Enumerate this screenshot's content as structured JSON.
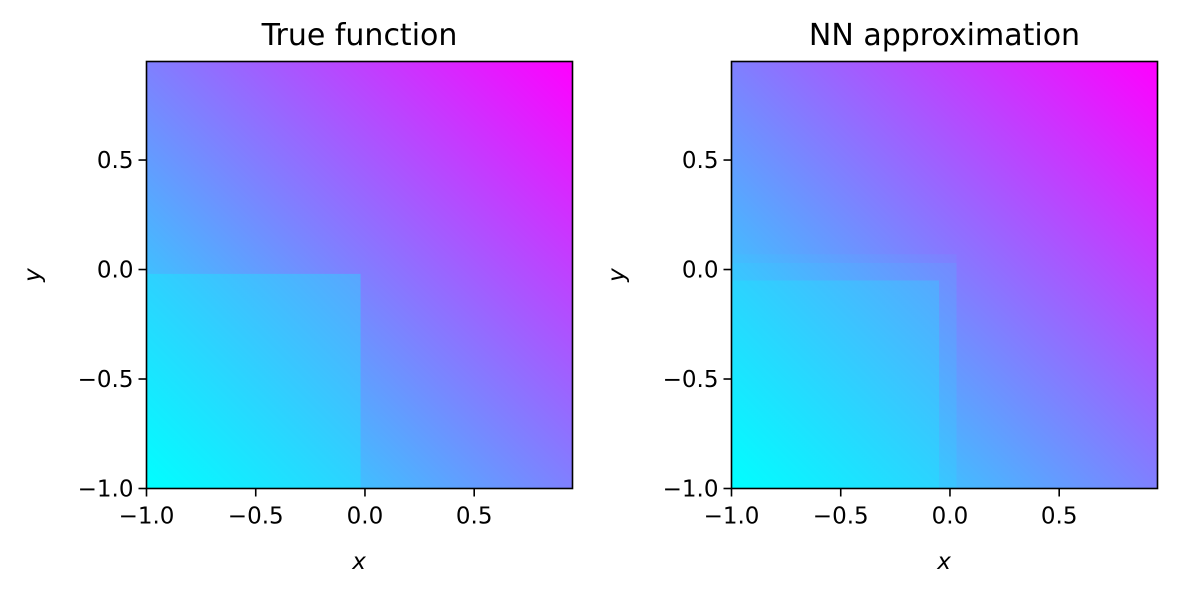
{
  "chart_data": [
    {
      "type": "heatmap",
      "title": "True function",
      "xlabel": "x",
      "ylabel": "y",
      "xlim": [
        -1.0,
        0.95
      ],
      "ylim": [
        -1.0,
        0.95
      ],
      "xticks": [
        -1.0,
        -0.5,
        0.0,
        0.5
      ],
      "yticks": [
        -1.0,
        -0.5,
        0.0,
        0.5
      ],
      "xtick_labels": [
        "−1.0",
        "−0.5",
        "0.0",
        "0.5"
      ],
      "ytick_labels": [
        "−1.0",
        "−0.5",
        "0.0",
        "0.5"
      ],
      "colormap": "cool",
      "colormap_colors": [
        "#00ffff",
        "#ff00ff"
      ],
      "region": {
        "x_max": -0.02,
        "y_max": -0.02,
        "shift": -0.3
      },
      "grid": false
    },
    {
      "type": "heatmap",
      "title": "NN approximation",
      "xlabel": "x",
      "ylabel": "y",
      "xlim": [
        -1.0,
        0.95
      ],
      "ylim": [
        -1.0,
        0.95
      ],
      "xticks": [
        -1.0,
        -0.5,
        0.0,
        0.5
      ],
      "yticks": [
        -1.0,
        -0.5,
        0.0,
        0.5
      ],
      "xtick_labels": [
        "−1.0",
        "−0.5",
        "0.0",
        "0.5"
      ],
      "ytick_labels": [
        "−1.0",
        "−0.5",
        "0.0",
        "0.5"
      ],
      "colormap": "cool",
      "colormap_colors": [
        "#00ffff",
        "#ff00ff"
      ],
      "region": {
        "x_max": -0.05,
        "y_max": -0.05,
        "shift": -0.3
      },
      "transition_band": {
        "x_max": 0.03,
        "y_max": 0.03,
        "shift": -0.12
      },
      "outer_band": {
        "x_max": 0.03,
        "y_max": 0.07,
        "shift": -0.05
      },
      "grid": false
    }
  ]
}
